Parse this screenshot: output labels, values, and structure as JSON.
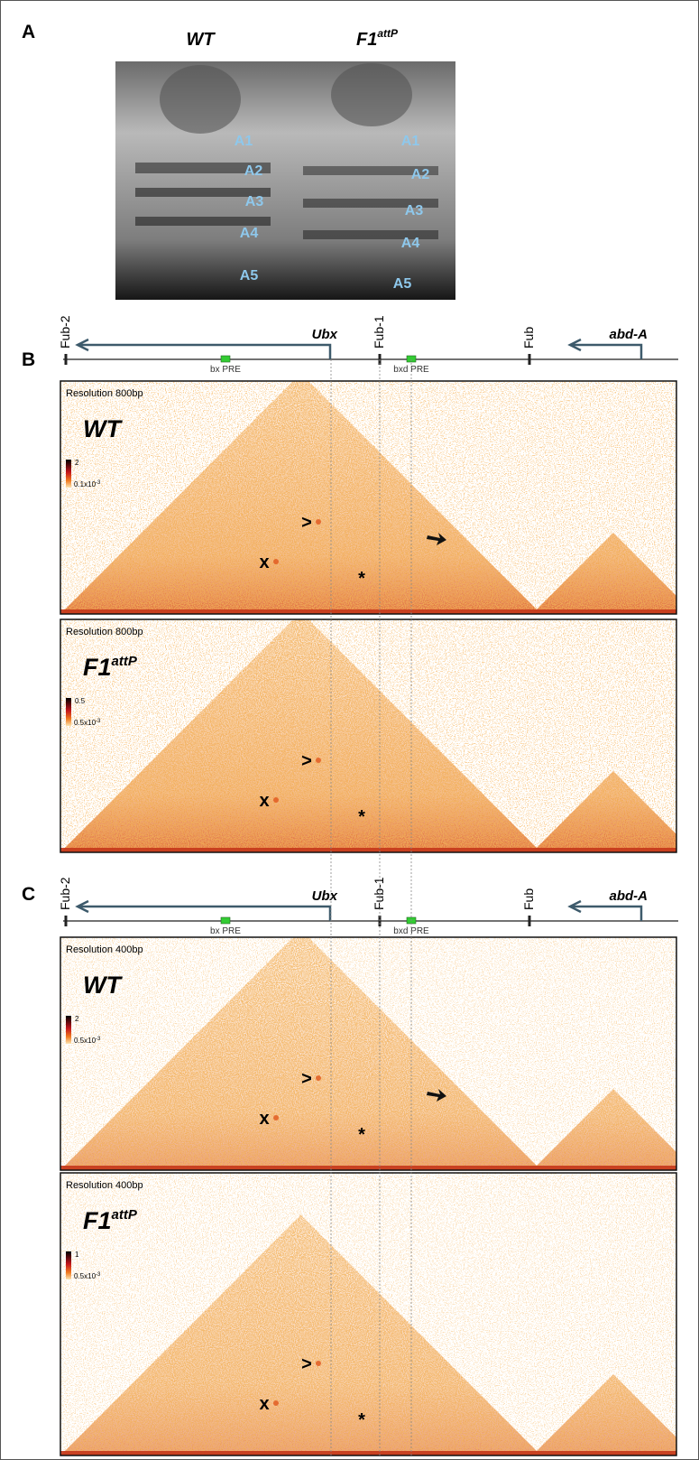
{
  "panel_a": {
    "label": "A",
    "wt": {
      "title": "WT",
      "segments": [
        "A1",
        "A2",
        "A3",
        "A4",
        "A5"
      ]
    },
    "mutant": {
      "title": "F1",
      "title_sup": "attP",
      "segments": [
        "A1",
        "A2",
        "A3",
        "A4",
        "A5"
      ]
    }
  },
  "panels": [
    {
      "label": "B",
      "track": {
        "fub_2": "Fub-2",
        "ubx": "Ubx",
        "fub_1": "Fub-1",
        "fub": "Fub",
        "abd_a": "abd-A",
        "bx_pre": "bx PRE",
        "bxd_pre": "bxd PRE"
      },
      "maps": [
        {
          "resolution": "Resolution 800bp",
          "genotype": "WT",
          "scale_max": "2",
          "scale_min": "0.1x10",
          "scale_min_sup": "-3",
          "markers": [
            ">",
            "x",
            "*"
          ]
        },
        {
          "resolution": "Resolution 800bp",
          "genotype": "F1",
          "genotype_sup": "attP",
          "scale_max": "0.5",
          "scale_min": "0.5x10",
          "scale_min_sup": "-3",
          "markers": [
            ">",
            "x",
            "*"
          ]
        }
      ]
    },
    {
      "label": "C",
      "track": {
        "fub_2": "Fub-2",
        "ubx": "Ubx",
        "fub_1": "Fub-1",
        "fub": "Fub",
        "abd_a": "abd-A",
        "bx_pre": "bx PRE",
        "bxd_pre": "bxd PRE"
      },
      "maps": [
        {
          "resolution": "Resolution 400bp",
          "genotype": "WT",
          "scale_max": "2",
          "scale_min": "0.5x10",
          "scale_min_sup": "-3",
          "markers": [
            ">",
            "x",
            "*"
          ]
        },
        {
          "resolution": "Resolution 400bp",
          "genotype": "F1",
          "genotype_sup": "attP",
          "scale_max": "1",
          "scale_min": "0.5x10",
          "scale_min_sup": "-3",
          "markers": [
            ">",
            "x",
            "*"
          ]
        }
      ]
    }
  ]
}
